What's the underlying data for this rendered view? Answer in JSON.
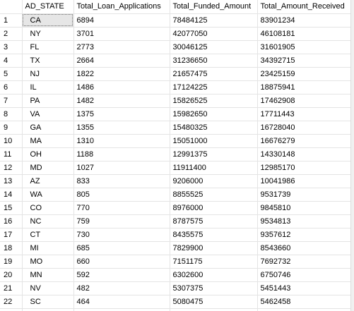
{
  "grid": {
    "headers": [
      "AD_STATE",
      "Total_Loan_Applications",
      "Total_Funded_Amount",
      "Total_Amount_Received"
    ],
    "selected_row": 1,
    "rows": [
      {
        "n": "1",
        "state": "CA",
        "apps": "6894",
        "funded": "78484125",
        "received": "83901234"
      },
      {
        "n": "2",
        "state": "NY",
        "apps": "3701",
        "funded": "42077050",
        "received": "46108181"
      },
      {
        "n": "3",
        "state": "FL",
        "apps": "2773",
        "funded": "30046125",
        "received": "31601905"
      },
      {
        "n": "4",
        "state": "TX",
        "apps": "2664",
        "funded": "31236650",
        "received": "34392715"
      },
      {
        "n": "5",
        "state": "NJ",
        "apps": "1822",
        "funded": "21657475",
        "received": "23425159"
      },
      {
        "n": "6",
        "state": "IL",
        "apps": "1486",
        "funded": "17124225",
        "received": "18875941"
      },
      {
        "n": "7",
        "state": "PA",
        "apps": "1482",
        "funded": "15826525",
        "received": "17462908"
      },
      {
        "n": "8",
        "state": "VA",
        "apps": "1375",
        "funded": "15982650",
        "received": "17711443"
      },
      {
        "n": "9",
        "state": "GA",
        "apps": "1355",
        "funded": "15480325",
        "received": "16728040"
      },
      {
        "n": "10",
        "state": "MA",
        "apps": "1310",
        "funded": "15051000",
        "received": "16676279"
      },
      {
        "n": "11",
        "state": "OH",
        "apps": "1188",
        "funded": "12991375",
        "received": "14330148"
      },
      {
        "n": "12",
        "state": "MD",
        "apps": "1027",
        "funded": "11911400",
        "received": "12985170"
      },
      {
        "n": "13",
        "state": "AZ",
        "apps": "833",
        "funded": "9206000",
        "received": "10041986"
      },
      {
        "n": "14",
        "state": "WA",
        "apps": "805",
        "funded": "8855525",
        "received": "9531739"
      },
      {
        "n": "15",
        "state": "CO",
        "apps": "770",
        "funded": "8976000",
        "received": "9845810"
      },
      {
        "n": "16",
        "state": "NC",
        "apps": "759",
        "funded": "8787575",
        "received": "9534813"
      },
      {
        "n": "17",
        "state": "CT",
        "apps": "730",
        "funded": "8435575",
        "received": "9357612"
      },
      {
        "n": "18",
        "state": "MI",
        "apps": "685",
        "funded": "7829900",
        "received": "8543660"
      },
      {
        "n": "19",
        "state": "MO",
        "apps": "660",
        "funded": "7151175",
        "received": "7692732"
      },
      {
        "n": "20",
        "state": "MN",
        "apps": "592",
        "funded": "6302600",
        "received": "6750746"
      },
      {
        "n": "21",
        "state": "NV",
        "apps": "482",
        "funded": "5307375",
        "received": "5451443"
      },
      {
        "n": "22",
        "state": "SC",
        "apps": "464",
        "funded": "5080475",
        "received": "5462458"
      }
    ]
  }
}
